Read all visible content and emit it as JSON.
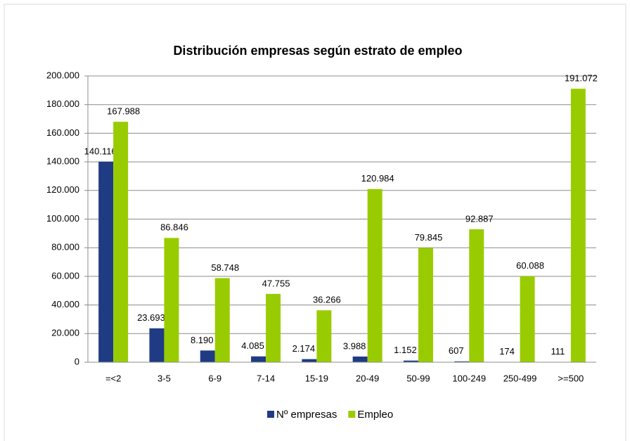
{
  "chart_data": {
    "type": "bar",
    "title": "Distribución empresas según estrato de empleo",
    "categories": [
      "=<2",
      "3-5",
      "6-9",
      "7-14",
      "15-19",
      "20-49",
      "50-99",
      "100-249",
      "250-499",
      ">=500"
    ],
    "series": [
      {
        "name": "Nº empresas",
        "color": "#1f3b84",
        "values": [
          140116,
          23693,
          8190,
          4085,
          2174,
          3988,
          1152,
          607,
          174,
          111
        ],
        "value_labels": [
          "140.116",
          "23.693",
          "8.190",
          "4.085",
          "2.174",
          "3.988",
          "1.152",
          "607",
          "174",
          "111"
        ]
      },
      {
        "name": "Empleo",
        "color": "#99cc00",
        "values": [
          167988,
          86846,
          58748,
          47755,
          36266,
          120984,
          79845,
          92887,
          60088,
          191072
        ],
        "value_labels": [
          "167.988",
          "86.846",
          "58.748",
          "47.755",
          "36.266",
          "120.984",
          "79.845",
          "92.887",
          "60.088",
          "191.072"
        ]
      }
    ],
    "ylim": [
      0,
      200000
    ],
    "yticks": [
      0,
      {
        "value": 20000,
        "label": "20.000"
      },
      {
        "value": 40000,
        "label": "40.000"
      },
      {
        "value": 60000,
        "label": "60.000"
      },
      {
        "value": 80000,
        "label": "80.000"
      },
      {
        "value": 100000,
        "label": "100.000"
      },
      {
        "value": 120000,
        "label": "120.000"
      },
      {
        "value": 140000,
        "label": "140.000"
      },
      {
        "value": 160000,
        "label": "160.000"
      },
      {
        "value": 180000,
        "label": "180.000"
      },
      {
        "value": 200000,
        "label": "200.000"
      }
    ],
    "grid": true,
    "legend": "bottom"
  }
}
